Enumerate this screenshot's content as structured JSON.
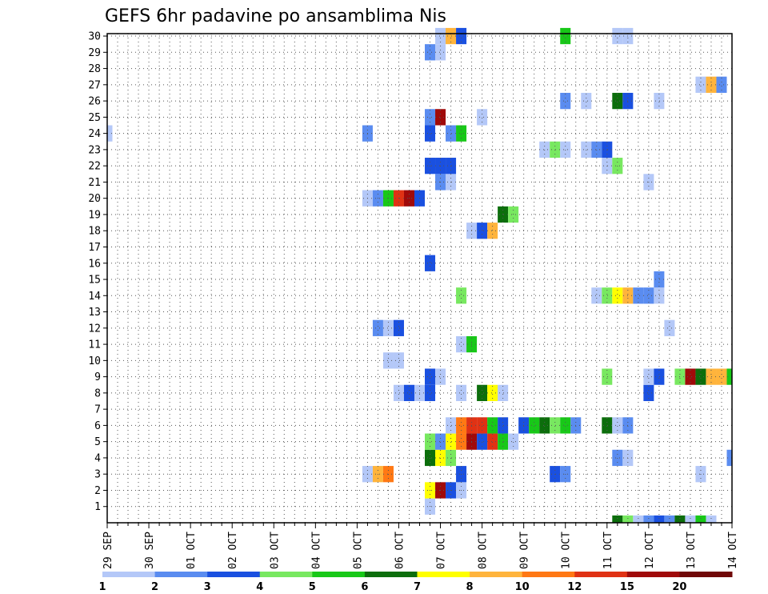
{
  "chart_data": {
    "type": "heatmap",
    "title": "GEFS 6hr padavine po ansamblima Nis",
    "x_tick_labels": [
      "29 SEP",
      "30 SEP",
      "01 OCT",
      "02 OCT",
      "03 OCT",
      "04 OCT",
      "05 OCT",
      "06 OCT",
      "07 OCT",
      "08 OCT",
      "09 OCT",
      "10 OCT",
      "11 OCT",
      "12 OCT",
      "13 OCT",
      "14 OCT"
    ],
    "y_tick_labels": [
      "1",
      "2",
      "3",
      "4",
      "5",
      "6",
      "7",
      "8",
      "9",
      "10",
      "11",
      "12",
      "13",
      "14",
      "15",
      "16",
      "17",
      "18",
      "19",
      "20",
      "21",
      "22",
      "23",
      "24",
      "25",
      "26",
      "27",
      "28",
      "29",
      "30"
    ],
    "ylim": [
      0,
      30
    ],
    "time_steps": 61,
    "grid": true,
    "colorbar": {
      "labels": [
        "1",
        "2",
        "3",
        "4",
        "5",
        "6",
        "7",
        "8",
        "10",
        "12",
        "15",
        "20"
      ],
      "colors": [
        "#b4c8f8",
        "#5a8cf0",
        "#1a50e0",
        "#78e860",
        "#18c818",
        "#0c6e0c",
        "#ffff00",
        "#ffb43c",
        "#ff7814",
        "#e03214",
        "#a00a0a",
        "#700808"
      ]
    },
    "cells": [
      [
        1,
        31,
        0
      ],
      [
        2,
        31,
        6
      ],
      [
        2,
        32,
        10
      ],
      [
        2,
        33,
        2
      ],
      [
        2,
        34,
        0
      ],
      [
        3,
        25,
        0
      ],
      [
        3,
        26,
        7
      ],
      [
        3,
        27,
        8
      ],
      [
        3,
        34,
        2
      ],
      [
        3,
        43,
        2
      ],
      [
        3,
        44,
        1
      ],
      [
        3,
        57,
        0
      ],
      [
        4,
        31,
        5
      ],
      [
        4,
        32,
        6
      ],
      [
        4,
        33,
        3
      ],
      [
        4,
        49,
        1
      ],
      [
        4,
        50,
        0
      ],
      [
        4,
        60,
        1
      ],
      [
        5,
        31,
        3
      ],
      [
        5,
        32,
        1
      ],
      [
        5,
        33,
        6
      ],
      [
        5,
        34,
        8
      ],
      [
        5,
        35,
        10
      ],
      [
        5,
        36,
        2
      ],
      [
        5,
        37,
        9
      ],
      [
        5,
        38,
        4
      ],
      [
        5,
        39,
        0
      ],
      [
        6,
        33,
        0
      ],
      [
        6,
        34,
        8
      ],
      [
        6,
        35,
        9
      ],
      [
        6,
        36,
        9
      ],
      [
        6,
        37,
        4
      ],
      [
        6,
        38,
        2
      ],
      [
        6,
        40,
        2
      ],
      [
        6,
        41,
        4
      ],
      [
        6,
        42,
        5
      ],
      [
        6,
        43,
        3
      ],
      [
        6,
        44,
        4
      ],
      [
        6,
        45,
        1
      ],
      [
        6,
        48,
        5
      ],
      [
        6,
        49,
        0
      ],
      [
        6,
        50,
        1
      ],
      [
        8,
        28,
        0
      ],
      [
        8,
        29,
        2
      ],
      [
        8,
        30,
        0
      ],
      [
        8,
        31,
        2
      ],
      [
        8,
        34,
        0
      ],
      [
        8,
        36,
        5
      ],
      [
        8,
        37,
        6
      ],
      [
        8,
        38,
        0
      ],
      [
        8,
        52,
        2
      ],
      [
        9,
        31,
        2
      ],
      [
        9,
        32,
        0
      ],
      [
        9,
        48,
        3
      ],
      [
        9,
        52,
        0
      ],
      [
        9,
        53,
        2
      ],
      [
        9,
        55,
        3
      ],
      [
        9,
        56,
        10
      ],
      [
        9,
        57,
        5
      ],
      [
        9,
        58,
        7
      ],
      [
        9,
        59,
        7
      ],
      [
        9,
        60,
        4
      ],
      [
        10,
        27,
        0
      ],
      [
        10,
        28,
        0
      ],
      [
        11,
        34,
        0
      ],
      [
        11,
        35,
        4
      ],
      [
        12,
        26,
        1
      ],
      [
        12,
        27,
        0
      ],
      [
        12,
        28,
        2
      ],
      [
        12,
        54,
        0
      ],
      [
        14,
        34,
        3
      ],
      [
        14,
        47,
        0
      ],
      [
        14,
        48,
        3
      ],
      [
        14,
        49,
        6
      ],
      [
        14,
        50,
        7
      ],
      [
        14,
        51,
        1
      ],
      [
        14,
        52,
        1
      ],
      [
        14,
        53,
        0
      ],
      [
        15,
        53,
        1
      ],
      [
        16,
        31,
        2
      ],
      [
        18,
        35,
        0
      ],
      [
        18,
        36,
        2
      ],
      [
        18,
        37,
        7
      ],
      [
        19,
        38,
        5
      ],
      [
        19,
        39,
        3
      ],
      [
        20,
        25,
        0
      ],
      [
        20,
        26,
        1
      ],
      [
        20,
        27,
        4
      ],
      [
        20,
        28,
        9
      ],
      [
        20,
        29,
        10
      ],
      [
        20,
        30,
        2
      ],
      [
        21,
        32,
        1
      ],
      [
        21,
        33,
        0
      ],
      [
        21,
        52,
        0
      ],
      [
        22,
        31,
        2
      ],
      [
        22,
        32,
        2
      ],
      [
        22,
        33,
        2
      ],
      [
        22,
        48,
        0
      ],
      [
        22,
        49,
        3
      ],
      [
        23,
        42,
        0
      ],
      [
        23,
        43,
        3
      ],
      [
        23,
        44,
        0
      ],
      [
        23,
        46,
        0
      ],
      [
        23,
        47,
        1
      ],
      [
        23,
        48,
        2
      ],
      [
        24,
        0,
        0
      ],
      [
        24,
        25,
        1
      ],
      [
        24,
        31,
        2
      ],
      [
        24,
        33,
        1
      ],
      [
        24,
        34,
        4
      ],
      [
        25,
        31,
        1
      ],
      [
        25,
        32,
        10
      ],
      [
        25,
        36,
        0
      ],
      [
        26,
        44,
        1
      ],
      [
        26,
        46,
        0
      ],
      [
        26,
        49,
        5
      ],
      [
        26,
        50,
        2
      ],
      [
        26,
        53,
        0
      ],
      [
        27,
        57,
        0
      ],
      [
        27,
        58,
        7
      ],
      [
        27,
        59,
        1
      ],
      [
        29,
        31,
        1
      ],
      [
        29,
        32,
        0
      ],
      [
        30,
        32,
        0
      ],
      [
        30,
        33,
        7
      ],
      [
        30,
        34,
        2
      ],
      [
        30,
        44,
        4
      ],
      [
        30,
        49,
        0
      ],
      [
        30,
        50,
        0
      ],
      [
        0,
        49,
        5
      ],
      [
        0,
        50,
        3
      ],
      [
        0,
        51,
        0
      ],
      [
        0,
        52,
        1
      ],
      [
        0,
        53,
        2
      ],
      [
        0,
        54,
        1
      ],
      [
        0,
        55,
        5
      ],
      [
        0,
        56,
        0
      ],
      [
        0,
        57,
        4
      ],
      [
        0,
        58,
        0
      ]
    ]
  }
}
